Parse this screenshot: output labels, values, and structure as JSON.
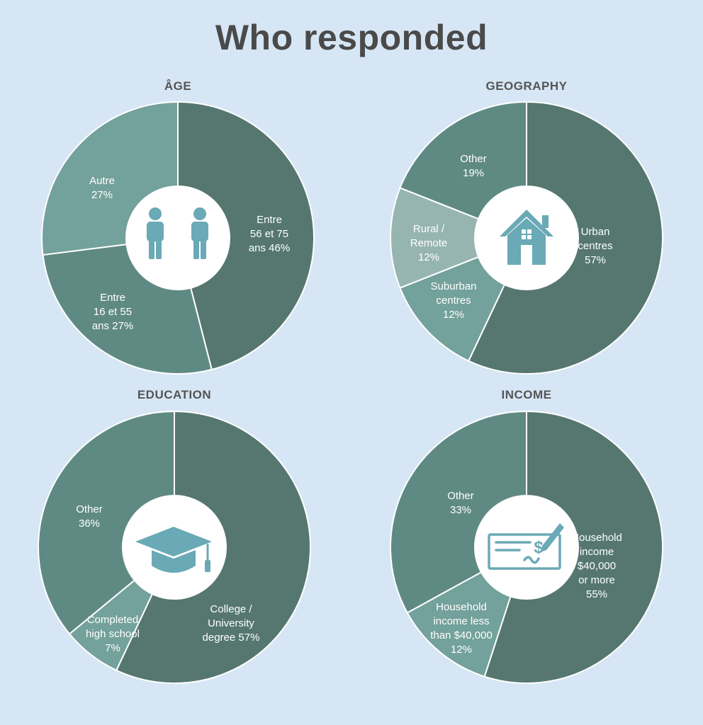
{
  "title": "Who responded",
  "colors": {
    "background": "#d6e6f5",
    "icon": "#6aa9b6",
    "slice_dark": "#55776f",
    "slice_mid": "#5f8a83",
    "slice_light": "#73a19b",
    "slice_lighter": "#96b5b1",
    "label_text": "#ffffff"
  },
  "chart_data": [
    {
      "type": "pie",
      "title": "ÂGE",
      "icon": "people-icon",
      "slices": [
        {
          "label": [
            "Entre",
            "56 et 75",
            "ans 46%"
          ],
          "value": 46,
          "color": "#55776f"
        },
        {
          "label": [
            "Entre",
            "16 et 55",
            "ans 27%"
          ],
          "value": 27,
          "color": "#5f8a83"
        },
        {
          "label": [
            "Autre",
            "27%"
          ],
          "value": 27,
          "color": "#73a19b"
        }
      ]
    },
    {
      "type": "pie",
      "title": "GEOGRAPHY",
      "icon": "house-icon",
      "slices": [
        {
          "label": [
            "Urban",
            "centres",
            "57%"
          ],
          "value": 57,
          "color": "#55776f"
        },
        {
          "label": [
            "Suburban",
            "centres",
            "12%"
          ],
          "value": 12,
          "color": "#73a19b"
        },
        {
          "label": [
            "Rural /",
            "Remote",
            "12%"
          ],
          "value": 12,
          "color": "#96b5b1"
        },
        {
          "label": [
            "Other",
            "19%"
          ],
          "value": 19,
          "color": "#5f8a83"
        }
      ]
    },
    {
      "type": "pie",
      "title": "EDUCATION",
      "icon": "graduation-cap-icon",
      "slices": [
        {
          "label": [
            "College /",
            "University",
            "degree 57%"
          ],
          "value": 57,
          "color": "#55776f"
        },
        {
          "label": [
            "Completed",
            "high school",
            "7%"
          ],
          "value": 7,
          "color": "#73a19b"
        },
        {
          "label": [
            "Other",
            "36%"
          ],
          "value": 36,
          "color": "#5f8a83"
        }
      ]
    },
    {
      "type": "pie",
      "title": "INCOME",
      "icon": "cheque-icon",
      "slices": [
        {
          "label": [
            "Household",
            "income",
            "$40,000",
            "or more",
            "55%"
          ],
          "value": 55,
          "color": "#55776f"
        },
        {
          "label": [
            "Household",
            "income less",
            "than $40,000",
            "12%"
          ],
          "value": 12,
          "color": "#73a19b"
        },
        {
          "label": [
            "Other",
            "33%"
          ],
          "value": 33,
          "color": "#5f8a83"
        }
      ]
    }
  ]
}
